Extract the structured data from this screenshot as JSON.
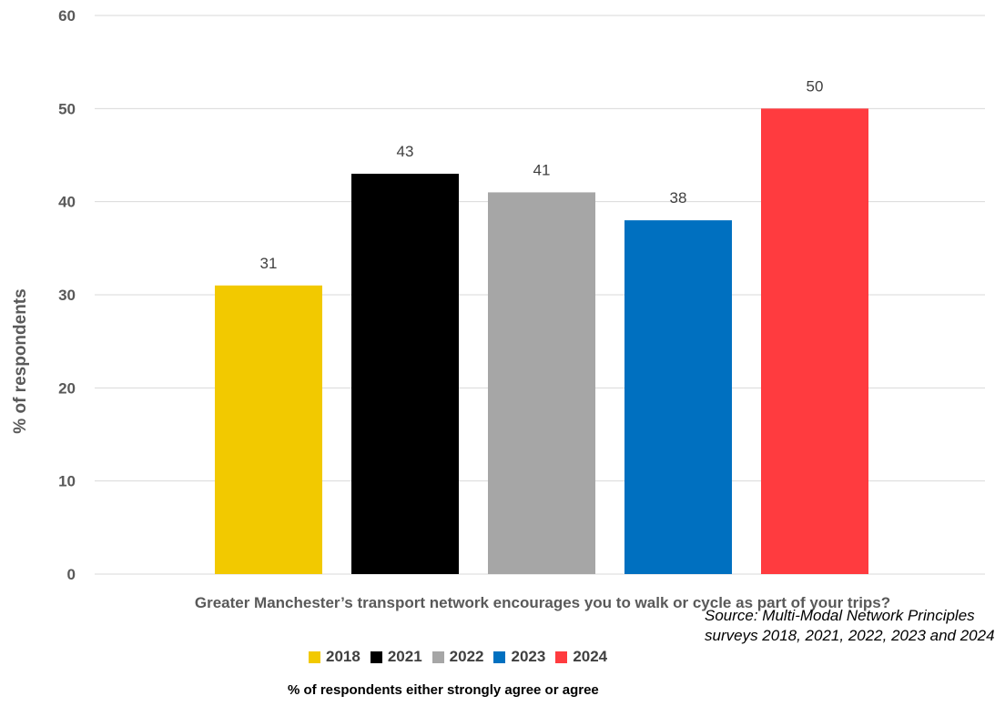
{
  "chart_data": {
    "type": "bar",
    "categories": [
      "Greater Manchester’s transport  network  encourages you to walk or cycle as part of your trips?"
    ],
    "series": [
      {
        "name": "2018",
        "values": [
          31
        ],
        "color": "#F2C900"
      },
      {
        "name": "2021",
        "values": [
          43
        ],
        "color": "#000000"
      },
      {
        "name": "2022",
        "values": [
          41
        ],
        "color": "#A6A6A6"
      },
      {
        "name": "2023",
        "values": [
          38
        ],
        "color": "#0070C0"
      },
      {
        "name": "2024",
        "values": [
          50
        ],
        "color": "#FF3B3F"
      }
    ],
    "ylabel": "% of respondents",
    "ylim": [
      0,
      60
    ],
    "yticks": [
      0,
      10,
      20,
      30,
      40,
      50,
      60
    ],
    "grid": true,
    "legend_position": "bottom",
    "subtitle": "% of respondents either strongly agree or agree",
    "source": "Source: Multi-Modal Network Principles surveys 2018, 2021, 2022, 2023 and 2024"
  }
}
